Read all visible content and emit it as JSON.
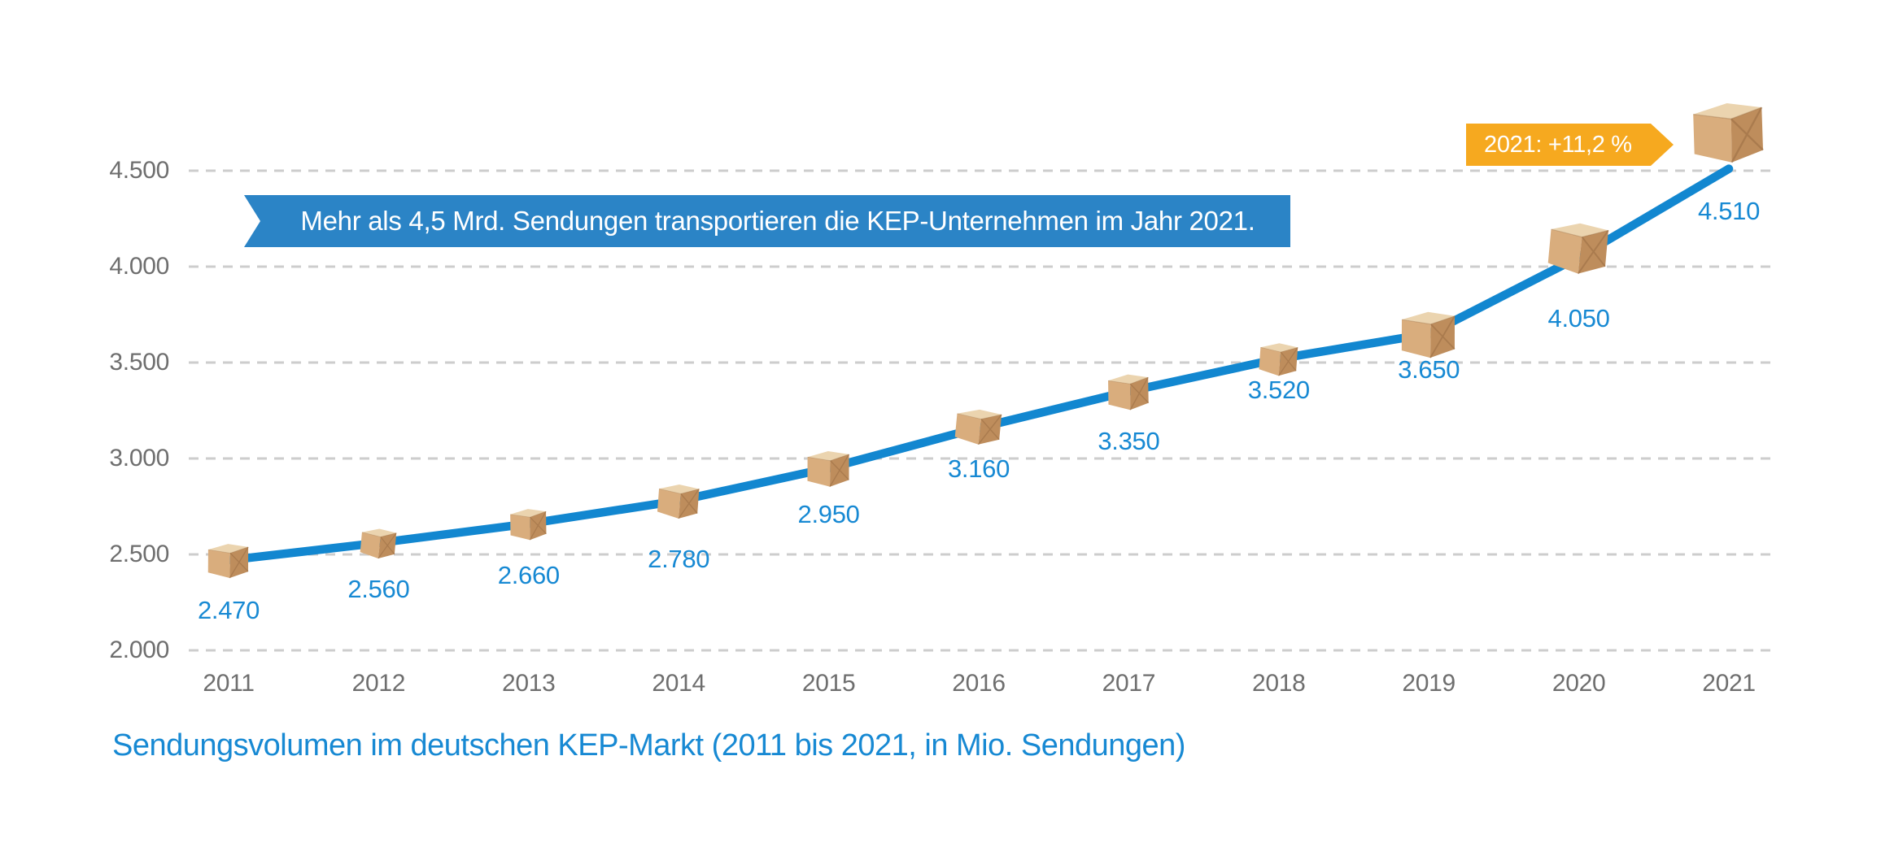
{
  "banner": {
    "text": "Mehr als 4,5 Mrd. Sendungen transportieren die KEP-Unternehmen im Jahr 2021."
  },
  "badge": {
    "text": "2021: +11,2 %"
  },
  "caption": "Sendungsvolumen im deutschen KEP-Markt (2011 bis 2021, in Mio. Sendungen)",
  "colors": {
    "line": "#1287d0",
    "value_label": "#1789d3",
    "banner": "#2b84c6",
    "badge": "#f6a91f",
    "axis_text": "#6e6e6e",
    "gridline": "#cdcdcd",
    "box_top": "#ebd4af",
    "box_left": "#d9ad7d",
    "box_right": "#be8d5c",
    "box_fold": "#96693f"
  },
  "chart_data": {
    "type": "line",
    "title": "",
    "xlabel": "",
    "ylabel": "",
    "unit": "Mio. Sendungen",
    "x": [
      "2011",
      "2012",
      "2013",
      "2014",
      "2015",
      "2016",
      "2017",
      "2018",
      "2019",
      "2020",
      "2021"
    ],
    "values": [
      2470,
      2560,
      2660,
      2780,
      2950,
      3160,
      3350,
      3520,
      3650,
      4050,
      4510
    ],
    "value_labels": [
      "2.470",
      "2.560",
      "2.660",
      "2.780",
      "2.950",
      "3.160",
      "3.350",
      "3.520",
      "3.650",
      "4.050",
      "4.510"
    ],
    "y_ticks": [
      {
        "label": "2.000",
        "value": 2000
      },
      {
        "label": "2.500",
        "value": 2500
      },
      {
        "label": "3.000",
        "value": 3000
      },
      {
        "label": "3.500",
        "value": 3500
      },
      {
        "label": "4.000",
        "value": 4000
      },
      {
        "label": "4.500",
        "value": 4500
      }
    ],
    "ylim": [
      2000,
      4750
    ],
    "grid": "horizontal-dashed",
    "legend": "none",
    "marker": "cardboard-parcel-icon",
    "annotations": [
      {
        "name": "headline-banner",
        "text": "Mehr als 4,5 Mrd. Sendungen transportieren die KEP-Unternehmen im Jahr 2021."
      },
      {
        "name": "growth-badge",
        "text": "2021: +11,2 %",
        "points_at": "2021"
      }
    ]
  }
}
